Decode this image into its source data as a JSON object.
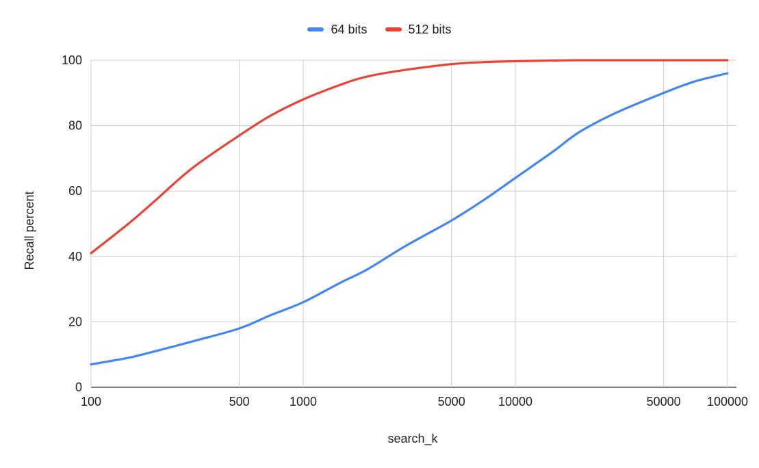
{
  "chart_data": {
    "type": "line",
    "title": "",
    "xlabel": "search_k",
    "ylabel": "Recall percent",
    "x_scale": "log",
    "xlim": [
      100,
      100000
    ],
    "ylim": [
      0,
      100
    ],
    "x_ticks": [
      100,
      500,
      1000,
      5000,
      10000,
      50000,
      100000
    ],
    "x_tick_labels": [
      "100",
      "500",
      "1000",
      "5000",
      "10000",
      "50000",
      "100000"
    ],
    "y_ticks": [
      0,
      20,
      40,
      60,
      80,
      100
    ],
    "y_tick_labels": [
      "0",
      "20",
      "40",
      "60",
      "80",
      "100"
    ],
    "grid": true,
    "legend_position": "top",
    "series": [
      {
        "name": "64 bits",
        "color": "#4285f4",
        "x": [
          100,
          150,
          200,
          300,
          500,
          700,
          1000,
          1500,
          2000,
          3000,
          5000,
          7000,
          10000,
          15000,
          20000,
          30000,
          50000,
          70000,
          100000
        ],
        "y": [
          7,
          9,
          11,
          14,
          18,
          22,
          26,
          32,
          36,
          43,
          51,
          57,
          64,
          72,
          78,
          84,
          90,
          93.5,
          96
        ]
      },
      {
        "name": "512 bits",
        "color": "#ea4335",
        "x": [
          100,
          150,
          200,
          300,
          500,
          700,
          1000,
          1500,
          2000,
          3000,
          5000,
          7000,
          10000,
          15000,
          20000,
          30000,
          50000,
          70000,
          100000
        ],
        "y": [
          41,
          50,
          57,
          67,
          77,
          83,
          88,
          92.5,
          95,
          97,
          98.8,
          99.4,
          99.7,
          99.9,
          100,
          100,
          100,
          100,
          100
        ]
      }
    ]
  }
}
